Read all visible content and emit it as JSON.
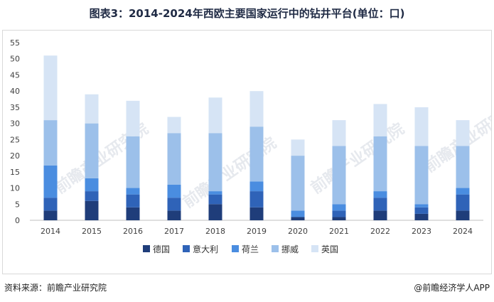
{
  "title": "图表3：2014-2024年西欧主要国家运行中的钻井平台(单位：口)",
  "source": "资料来源：前瞻产业研究院",
  "credit": "@前瞻经济学人APP",
  "watermark": "前瞻产业研究院",
  "chart_data": {
    "type": "bar",
    "stacked": true,
    "title": "图表3：2014-2024年西欧主要国家运行中的钻井平台(单位：口)",
    "xlabel": "",
    "ylabel": "",
    "categories": [
      "2014",
      "2015",
      "2016",
      "2017",
      "2018",
      "2019",
      "2020",
      "2021",
      "2022",
      "2023",
      "2024"
    ],
    "ylim": [
      0,
      55
    ],
    "yticks": [
      0,
      5,
      10,
      15,
      20,
      25,
      30,
      35,
      40,
      45,
      50,
      55
    ],
    "legend_position": "bottom",
    "grid": false,
    "series": [
      {
        "name": "德国",
        "color": "#1f3d7a",
        "values": [
          3,
          6,
          4,
          3,
          5,
          4,
          1,
          1,
          3,
          2,
          3
        ]
      },
      {
        "name": "意大利",
        "color": "#2f63b8",
        "values": [
          4,
          3,
          4,
          4,
          3,
          5,
          0,
          2,
          4,
          2,
          5
        ]
      },
      {
        "name": "荷兰",
        "color": "#4a8de0",
        "values": [
          10,
          4,
          2,
          4,
          1,
          3,
          2,
          2,
          2,
          1,
          2
        ]
      },
      {
        "name": "挪威",
        "color": "#9cc0ea",
        "values": [
          14,
          17,
          16,
          16,
          18,
          17,
          17,
          18,
          17,
          18,
          13
        ]
      },
      {
        "name": "英国",
        "color": "#d6e4f5",
        "values": [
          20,
          9,
          11,
          5,
          11,
          11,
          5,
          8,
          10,
          12,
          8
        ]
      }
    ]
  }
}
